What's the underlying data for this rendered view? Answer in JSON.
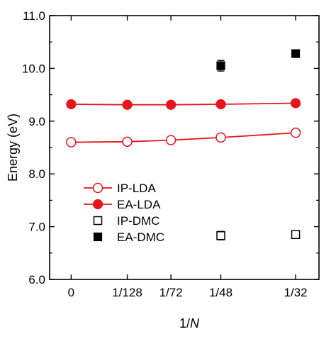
{
  "chart_data": {
    "type": "scatter",
    "xlabel": "1/N",
    "xlabel_prefix": "1/",
    "xlabel_var": "N",
    "ylabel": "Energy (eV)",
    "x_categories": [
      "0",
      "1/128",
      "1/72",
      "1/48",
      "1/32"
    ],
    "x_values": [
      0,
      0.0078125,
      0.0138889,
      0.0208333,
      0.03125
    ],
    "xlim": [
      -0.003,
      0.0345
    ],
    "ylim": [
      6.0,
      11.0
    ],
    "y_ticks": [
      6.0,
      7.0,
      8.0,
      9.0,
      10.0,
      11.0
    ],
    "y_tick_labels": [
      "6.0",
      "7.0",
      "8.0",
      "9.0",
      "10.0",
      "11.0"
    ],
    "grid": false,
    "legend_position": "bottom-left",
    "series": [
      {
        "name": "IP-LDA",
        "marker": "open-circle",
        "line": true,
        "color": "#e8141c",
        "x": [
          0,
          0.0078125,
          0.0138889,
          0.0208333,
          0.03125
        ],
        "y": [
          8.6,
          8.61,
          8.64,
          8.69,
          8.78
        ]
      },
      {
        "name": "EA-LDA",
        "marker": "filled-circle",
        "line": true,
        "color": "#e8141c",
        "x": [
          0,
          0.0078125,
          0.0138889,
          0.0208333,
          0.03125
        ],
        "y": [
          9.32,
          9.31,
          9.31,
          9.32,
          9.34
        ]
      },
      {
        "name": "IP-DMC",
        "marker": "open-square",
        "line": false,
        "color": "#000000",
        "x": [
          0.0208333,
          0.03125
        ],
        "y": [
          6.83,
          6.85
        ],
        "err": [
          0.08,
          0.05
        ]
      },
      {
        "name": "EA-DMC",
        "marker": "filled-square",
        "line": false,
        "color": "#000000",
        "x": [
          0.0208333,
          0.03125
        ],
        "y": [
          10.05,
          10.28
        ],
        "err": [
          0.1,
          0.05
        ]
      }
    ]
  }
}
